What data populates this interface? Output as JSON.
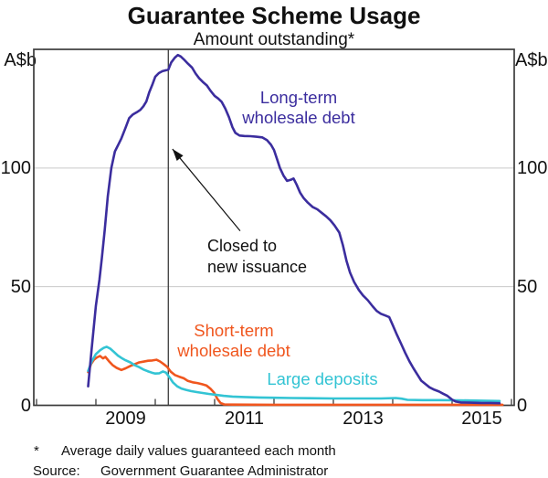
{
  "header": {
    "title": "Guarantee Scheme Usage",
    "subtitle": "Amount outstanding*",
    "unit_left": "A$b",
    "unit_right": "A$b"
  },
  "footnotes": {
    "symbol": "*",
    "note": "Average daily values guaranteed each month",
    "source_label": "Source:",
    "source": "Government Guarantee Administrator"
  },
  "colors": {
    "long_term": "#3B2D9E",
    "short_term": "#F0561E",
    "large_deposits": "#33C4D4",
    "axis": "#3C3C3C",
    "gridline": "#C9C9C9",
    "annotation": "#111111"
  },
  "chart_data": {
    "type": "line",
    "title": "Guarantee Scheme Usage",
    "subtitle": "Amount outstanding*",
    "ylabel": "A$b",
    "ylim": [
      0,
      150
    ],
    "y_ticks": [
      0,
      50,
      100
    ],
    "gridlines": [
      50,
      100
    ],
    "xlim": [
      2007.954,
      2016.046
    ],
    "x_boundary_ticks": [
      2008,
      2009,
      2010,
      2011,
      2012,
      2013,
      2014,
      2015,
      2016
    ],
    "x_year_labels": [
      2009,
      2011,
      2013,
      2015
    ],
    "legend_position": "inline-labels",
    "grid": "horizontal-only",
    "vline": {
      "x": 2010.22
    },
    "annotation": {
      "lines": [
        "Closed to",
        "new issuance"
      ],
      "arrow_from": [
        2011.43,
        73.5
      ],
      "arrow_to": [
        2010.29,
        108
      ]
    },
    "series": [
      {
        "name": "Short-term wholesale debt",
        "label_lines": [
          "Short-term",
          "wholesale debt"
        ],
        "color": "#F0561E",
        "points": [
          [
            2008.87,
            14
          ],
          [
            2008.92,
            17.5
          ],
          [
            2008.97,
            19.3
          ],
          [
            2009.02,
            20.2
          ],
          [
            2009.07,
            20.8
          ],
          [
            2009.12,
            19.8
          ],
          [
            2009.16,
            20.4
          ],
          [
            2009.22,
            18.6
          ],
          [
            2009.28,
            17.0
          ],
          [
            2009.35,
            15.8
          ],
          [
            2009.43,
            14.9
          ],
          [
            2009.5,
            15.6
          ],
          [
            2009.58,
            16.6
          ],
          [
            2009.66,
            17.4
          ],
          [
            2009.73,
            18.1
          ],
          [
            2009.8,
            18.4
          ],
          [
            2009.88,
            18.8
          ],
          [
            2009.95,
            18.9
          ],
          [
            2010.02,
            19.2
          ],
          [
            2010.08,
            18.5
          ],
          [
            2010.14,
            17.4
          ],
          [
            2010.2,
            16.2
          ],
          [
            2010.26,
            14.2
          ],
          [
            2010.33,
            12.8
          ],
          [
            2010.4,
            12.1
          ],
          [
            2010.48,
            11.4
          ],
          [
            2010.55,
            10.3
          ],
          [
            2010.63,
            9.7
          ],
          [
            2010.71,
            9.4
          ],
          [
            2010.79,
            8.9
          ],
          [
            2010.86,
            8.4
          ],
          [
            2010.93,
            7.0
          ],
          [
            2010.99,
            5.4
          ],
          [
            2011.05,
            2.6
          ],
          [
            2011.1,
            1.0
          ],
          [
            2011.16,
            0.4
          ],
          [
            2011.3,
            0.3
          ],
          [
            2012.0,
            0.25
          ],
          [
            2013.0,
            0.25
          ],
          [
            2014.0,
            0.25
          ],
          [
            2015.0,
            0.25
          ],
          [
            2015.85,
            0.25
          ]
        ]
      },
      {
        "name": "Large deposits",
        "label_lines": [
          "Large deposits"
        ],
        "color": "#33C4D4",
        "points": [
          [
            2008.87,
            14.5
          ],
          [
            2008.93,
            18.5
          ],
          [
            2009.0,
            21.6
          ],
          [
            2009.07,
            23.2
          ],
          [
            2009.13,
            24.2
          ],
          [
            2009.18,
            24.7
          ],
          [
            2009.24,
            23.9
          ],
          [
            2009.3,
            22.6
          ],
          [
            2009.37,
            21.0
          ],
          [
            2009.43,
            20.0
          ],
          [
            2009.5,
            19.0
          ],
          [
            2009.58,
            18.1
          ],
          [
            2009.65,
            17.0
          ],
          [
            2009.73,
            16.1
          ],
          [
            2009.8,
            15.1
          ],
          [
            2009.87,
            14.4
          ],
          [
            2009.94,
            13.8
          ],
          [
            2010.0,
            13.4
          ],
          [
            2010.07,
            13.5
          ],
          [
            2010.13,
            14.3
          ],
          [
            2010.18,
            13.8
          ],
          [
            2010.24,
            11.8
          ],
          [
            2010.3,
            9.6
          ],
          [
            2010.37,
            8.0
          ],
          [
            2010.44,
            7.1
          ],
          [
            2010.52,
            6.5
          ],
          [
            2010.6,
            6.0
          ],
          [
            2010.7,
            5.6
          ],
          [
            2010.8,
            5.2
          ],
          [
            2010.9,
            4.8
          ],
          [
            2011.0,
            4.5
          ],
          [
            2011.15,
            4.0
          ],
          [
            2011.3,
            3.7
          ],
          [
            2011.5,
            3.5
          ],
          [
            2011.75,
            3.3
          ],
          [
            2012.0,
            3.2
          ],
          [
            2012.3,
            3.1
          ],
          [
            2012.6,
            3.0
          ],
          [
            2013.0,
            2.9
          ],
          [
            2013.4,
            2.9
          ],
          [
            2013.8,
            2.9
          ],
          [
            2014.05,
            3.1
          ],
          [
            2014.15,
            2.8
          ],
          [
            2014.25,
            2.3
          ],
          [
            2014.5,
            2.2
          ],
          [
            2014.8,
            2.2
          ],
          [
            2015.1,
            2.1
          ],
          [
            2015.4,
            2.0
          ],
          [
            2015.6,
            1.9
          ],
          [
            2015.8,
            1.8
          ]
        ]
      },
      {
        "name": "Long-term wholesale debt",
        "label_lines": [
          "Long-term",
          "wholesale debt"
        ],
        "color": "#3B2D9E",
        "points": [
          [
            2008.87,
            8
          ],
          [
            2008.93,
            24
          ],
          [
            2009.0,
            42
          ],
          [
            2009.06,
            53
          ],
          [
            2009.1,
            62
          ],
          [
            2009.15,
            74
          ],
          [
            2009.2,
            88
          ],
          [
            2009.26,
            100
          ],
          [
            2009.32,
            107
          ],
          [
            2009.38,
            110
          ],
          [
            2009.43,
            112.5
          ],
          [
            2009.5,
            117
          ],
          [
            2009.56,
            121
          ],
          [
            2009.62,
            122.5
          ],
          [
            2009.69,
            123.5
          ],
          [
            2009.75,
            124.5
          ],
          [
            2009.8,
            126
          ],
          [
            2009.85,
            128
          ],
          [
            2009.9,
            132
          ],
          [
            2009.95,
            135
          ],
          [
            2010.0,
            138.5
          ],
          [
            2010.06,
            140
          ],
          [
            2010.12,
            140.8
          ],
          [
            2010.18,
            141.2
          ],
          [
            2010.22,
            141.5
          ],
          [
            2010.27,
            144.5
          ],
          [
            2010.33,
            146.5
          ],
          [
            2010.38,
            147.6
          ],
          [
            2010.43,
            147
          ],
          [
            2010.48,
            145.8
          ],
          [
            2010.55,
            144
          ],
          [
            2010.62,
            142.3
          ],
          [
            2010.68,
            139.8
          ],
          [
            2010.74,
            137.8
          ],
          [
            2010.8,
            136.3
          ],
          [
            2010.87,
            134.8
          ],
          [
            2010.93,
            132.6
          ],
          [
            2011.0,
            130.4
          ],
          [
            2011.06,
            129.3
          ],
          [
            2011.12,
            127.8
          ],
          [
            2011.18,
            125
          ],
          [
            2011.24,
            121.5
          ],
          [
            2011.3,
            117.2
          ],
          [
            2011.35,
            114.8
          ],
          [
            2011.42,
            113.7
          ],
          [
            2011.5,
            113.5
          ],
          [
            2011.6,
            113.4
          ],
          [
            2011.7,
            113.2
          ],
          [
            2011.8,
            112.9
          ],
          [
            2011.88,
            111.8
          ],
          [
            2011.95,
            109.8
          ],
          [
            2012.0,
            107.6
          ],
          [
            2012.05,
            103.9
          ],
          [
            2012.1,
            100
          ],
          [
            2012.16,
            96.8
          ],
          [
            2012.22,
            94.6
          ],
          [
            2012.28,
            95.0
          ],
          [
            2012.33,
            95.6
          ],
          [
            2012.38,
            93.1
          ],
          [
            2012.44,
            89.6
          ],
          [
            2012.5,
            87.3
          ],
          [
            2012.57,
            85.4
          ],
          [
            2012.65,
            83.6
          ],
          [
            2012.73,
            82.6
          ],
          [
            2012.8,
            81.2
          ],
          [
            2012.88,
            79.6
          ],
          [
            2012.95,
            78.0
          ],
          [
            2013.02,
            75.8
          ],
          [
            2013.1,
            72.8
          ],
          [
            2013.16,
            67.5
          ],
          [
            2013.22,
            61.0
          ],
          [
            2013.28,
            56.0
          ],
          [
            2013.35,
            52.0
          ],
          [
            2013.43,
            48.6
          ],
          [
            2013.5,
            46.3
          ],
          [
            2013.58,
            44.3
          ],
          [
            2013.66,
            41.8
          ],
          [
            2013.73,
            39.8
          ],
          [
            2013.8,
            38.6
          ],
          [
            2013.88,
            37.8
          ],
          [
            2013.94,
            37.2
          ],
          [
            2014.0,
            33.8
          ],
          [
            2014.07,
            29.8
          ],
          [
            2014.14,
            26.0
          ],
          [
            2014.21,
            22.2
          ],
          [
            2014.28,
            18.6
          ],
          [
            2014.35,
            15.6
          ],
          [
            2014.42,
            12.8
          ],
          [
            2014.48,
            10.4
          ],
          [
            2014.55,
            9.0
          ],
          [
            2014.62,
            7.6
          ],
          [
            2014.7,
            6.6
          ],
          [
            2014.78,
            5.8
          ],
          [
            2014.85,
            4.9
          ],
          [
            2014.92,
            4.0
          ],
          [
            2015.0,
            2.4
          ],
          [
            2015.06,
            1.6
          ],
          [
            2015.15,
            1.2
          ],
          [
            2015.3,
            1.1
          ],
          [
            2015.5,
            1.0
          ],
          [
            2015.65,
            1.0
          ],
          [
            2015.8,
            0.9
          ]
        ]
      }
    ]
  }
}
